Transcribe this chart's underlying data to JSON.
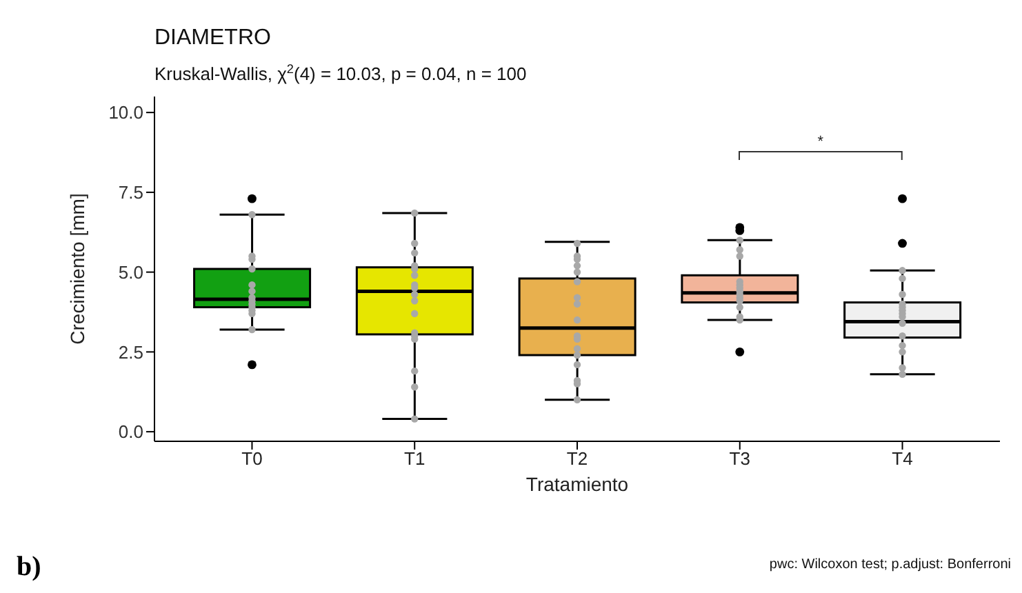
{
  "chart_data": {
    "type": "box",
    "title": "DIAMETRO",
    "subtitle": "Kruskal-Wallis, χ$^{2}$(4) = 10.03, p = 0.04, n = 100",
    "xlabel": "Tratamiento",
    "ylabel": "Crecimiento [mm]",
    "categories": [
      "T0",
      "T1",
      "T2",
      "T3",
      "T4"
    ],
    "colors": [
      "#12a012",
      "#e6e600",
      "#e8b04e",
      "#f2b49a",
      "#f0f0f0"
    ],
    "boxes": [
      {
        "low": 3.2,
        "q1": 3.9,
        "median": 4.15,
        "q3": 5.1,
        "high": 6.8,
        "outliers": [
          7.3,
          2.1
        ]
      },
      {
        "low": 0.4,
        "q1": 3.05,
        "median": 4.4,
        "q3": 5.15,
        "high": 6.85
      },
      {
        "low": 1.0,
        "q1": 2.4,
        "median": 3.25,
        "q3": 4.8,
        "high": 5.95
      },
      {
        "low": 3.5,
        "q1": 4.05,
        "median": 4.35,
        "q3": 4.9,
        "high": 6.0,
        "outliers": [
          6.4,
          6.3,
          2.5
        ]
      },
      {
        "low": 1.8,
        "q1": 2.95,
        "median": 3.45,
        "q3": 4.05,
        "high": 5.05,
        "outliers": [
          7.3,
          5.9
        ]
      }
    ],
    "series": [
      {
        "type": "scatter",
        "color": "#a8a8a8",
        "x": [
          "T0",
          "T0",
          "T0",
          "T0",
          "T0",
          "T0",
          "T0",
          "T0",
          "T0",
          "T0",
          "T0",
          "T0",
          "T0",
          "T1",
          "T1",
          "T1",
          "T1",
          "T1",
          "T1",
          "T1",
          "T1",
          "T1",
          "T1",
          "T1",
          "T1",
          "T1",
          "T1",
          "T1",
          "T1",
          "T1",
          "T2",
          "T2",
          "T2",
          "T2",
          "T2",
          "T2",
          "T2",
          "T2",
          "T2",
          "T2",
          "T2",
          "T2",
          "T2",
          "T2",
          "T2",
          "T2",
          "T2",
          "T3",
          "T3",
          "T3",
          "T3",
          "T3",
          "T3",
          "T3",
          "T3",
          "T3",
          "T3",
          "T3",
          "T3",
          "T3",
          "T4",
          "T4",
          "T4",
          "T4",
          "T4",
          "T4",
          "T4",
          "T4",
          "T4",
          "T4",
          "T4",
          "T4",
          "T4",
          "T4"
        ],
        "values": [
          6.8,
          5.4,
          5.5,
          5.1,
          4.6,
          4.4,
          4.2,
          4.1,
          4.0,
          3.9,
          3.8,
          3.7,
          3.2,
          6.85,
          5.9,
          5.6,
          5.2,
          5.1,
          4.9,
          4.6,
          4.5,
          4.3,
          4.1,
          3.7,
          3.1,
          3.0,
          2.9,
          1.9,
          1.4,
          0.4,
          5.9,
          5.5,
          5.4,
          5.2,
          5.0,
          4.7,
          4.2,
          4.0,
          3.5,
          3.0,
          2.9,
          2.6,
          2.4,
          2.1,
          1.6,
          1.5,
          1.0,
          6.0,
          5.7,
          5.5,
          4.7,
          4.6,
          4.5,
          4.4,
          4.3,
          4.2,
          4.1,
          3.9,
          3.6,
          3.5,
          5.05,
          4.8,
          4.3,
          4.0,
          3.9,
          3.8,
          3.7,
          3.6,
          3.4,
          3.0,
          2.7,
          2.5,
          2.0,
          1.8
        ]
      }
    ],
    "ylim": [
      -0.3,
      10.5
    ],
    "yticks": [
      {
        "value": 0,
        "label": "0.0"
      },
      {
        "value": 2.5,
        "label": "2.5"
      },
      {
        "value": 5,
        "label": "5.0"
      },
      {
        "value": 7.5,
        "label": "7.5"
      },
      {
        "value": 10,
        "label": "10.0"
      }
    ],
    "annotations": [
      "*",
      "pwc: Wilcoxon test; p.adjust: Bonferroni",
      "b)"
    ]
  }
}
